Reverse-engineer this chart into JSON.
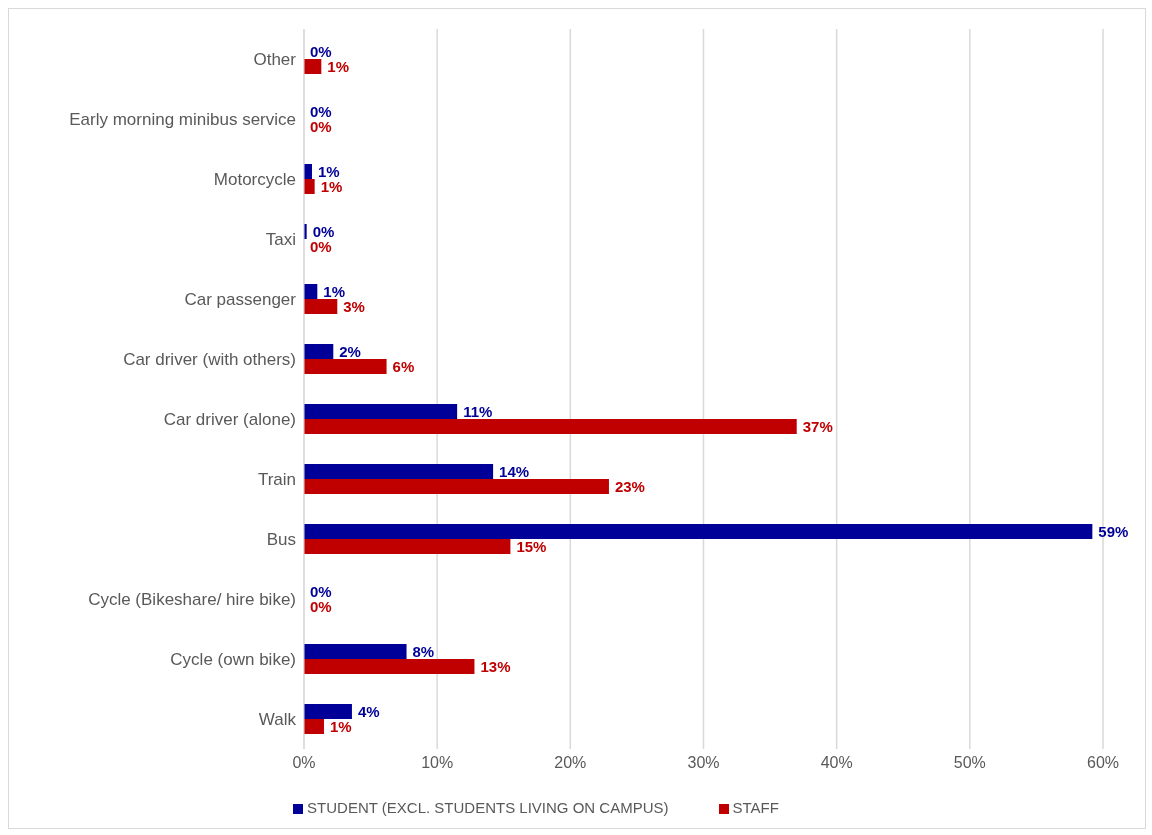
{
  "chart_data": {
    "type": "bar",
    "orientation": "horizontal",
    "categories": [
      "Other",
      "Early morning minibus service",
      "Motorcycle",
      "Taxi",
      "Car passenger",
      "Car driver (with others)",
      "Car driver (alone)",
      "Train",
      "Bus",
      "Cycle (Bikeshare/ hire bike)",
      "Cycle (own bike)",
      "Walk"
    ],
    "series": [
      {
        "name": "STUDENT (EXCL. STUDENTS LIVING ON CAMPUS)",
        "color": "#000099",
        "values": [
          0,
          0,
          0.6,
          0.2,
          1.0,
          2.2,
          11.5,
          14.2,
          59.2,
          0,
          7.7,
          3.6
        ],
        "value_labels": [
          "0%",
          "0%",
          "1%",
          "0%",
          "1%",
          "2%",
          "11%",
          "14%",
          "59%",
          "0%",
          "8%",
          "4%"
        ]
      },
      {
        "name": "STAFF",
        "color": "#c00000",
        "values": [
          1.3,
          0,
          0.8,
          0,
          2.5,
          6.2,
          37.0,
          22.9,
          15.5,
          0,
          12.8,
          1.5
        ],
        "value_labels": [
          "1%",
          "0%",
          "1%",
          "0%",
          "3%",
          "6%",
          "37%",
          "23%",
          "15%",
          "0%",
          "13%",
          "1%"
        ]
      }
    ],
    "xlim": [
      0,
      60
    ],
    "xticks": [
      {
        "value": 0,
        "label": "0%"
      },
      {
        "value": 10,
        "label": "10%"
      },
      {
        "value": 20,
        "label": "20%"
      },
      {
        "value": 30,
        "label": "30%"
      },
      {
        "value": 40,
        "label": "40%"
      },
      {
        "value": 50,
        "label": "50%"
      },
      {
        "value": 60,
        "label": "60%"
      }
    ],
    "grid": "x",
    "legend": "bottom"
  }
}
